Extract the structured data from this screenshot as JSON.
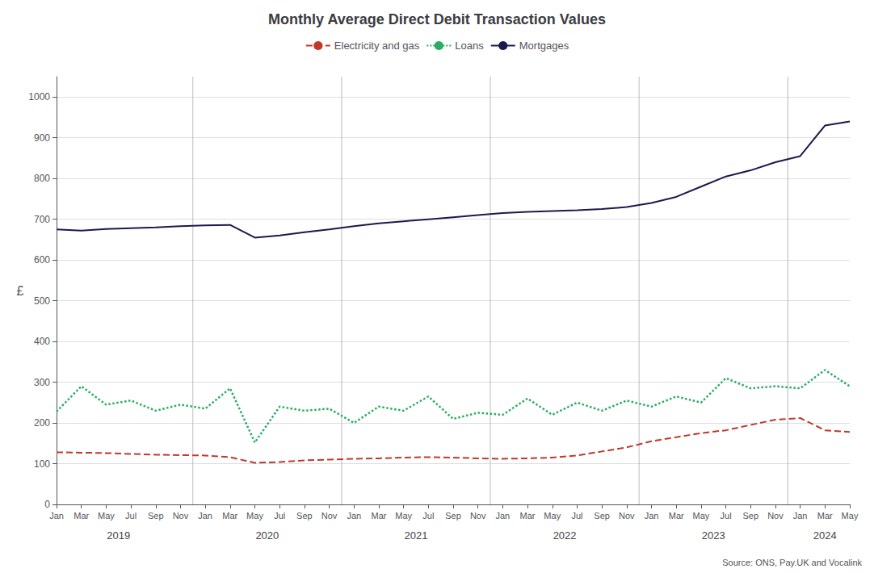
{
  "chart_data": {
    "type": "line",
    "title": "Monthly Average Direct Debit Transaction Values",
    "y_label": "£",
    "categories": [
      "Jan",
      "Mar",
      "May",
      "Jul",
      "Sep",
      "Nov",
      "Jan",
      "Mar",
      "May",
      "Jul",
      "Sep",
      "Nov",
      "Jan",
      "Mar",
      "May",
      "Jul",
      "Sep",
      "Nov",
      "Jan",
      "Mar",
      "May",
      "Jul",
      "Sep",
      "Nov",
      "Jan",
      "Mar",
      "May",
      "Jul",
      "Sep",
      "Nov",
      "Jan",
      "Mar",
      "May"
    ],
    "series": [
      {
        "name": "Electricity and gas",
        "color": "#c0392b",
        "line_style": "dashed",
        "values": [
          128,
          127,
          126,
          124,
          122,
          121,
          120,
          116,
          102,
          104,
          108,
          110,
          112,
          113,
          115,
          116,
          115,
          113,
          112,
          113,
          115,
          120,
          130,
          140,
          155,
          165,
          175,
          182,
          195,
          208,
          212,
          182,
          178
        ]
      },
      {
        "name": "Loans",
        "color": "#27ae60",
        "line_style": "dotted",
        "values": [
          228,
          290,
          245,
          255,
          230,
          245,
          235,
          285,
          152,
          240,
          230,
          235,
          200,
          240,
          230,
          265,
          210,
          225,
          220,
          260,
          220,
          250,
          230,
          255,
          240,
          265,
          250,
          310,
          285,
          290,
          285,
          330,
          290
        ]
      },
      {
        "name": "Mortgages",
        "color": "#1a1a4e",
        "line_style": "solid",
        "values": [
          675,
          672,
          676,
          678,
          680,
          683,
          685,
          686,
          655,
          660,
          668,
          675,
          683,
          690,
          695,
          700,
          705,
          710,
          715,
          718,
          720,
          722,
          725,
          730,
          740,
          755,
          780,
          805,
          820,
          840,
          855,
          930,
          940
        ]
      }
    ],
    "annotations": [
      "2019",
      "2020",
      "2021",
      "2022",
      "2023",
      "2024"
    ],
    "source": "Source: ONS, Pay.UK and Vocalink",
    "ylim": [
      0,
      1050
    ],
    "yticks": [
      0,
      100,
      200,
      300,
      400,
      500,
      600,
      700,
      800,
      900,
      1000
    ],
    "grid": true,
    "legend": "top"
  }
}
